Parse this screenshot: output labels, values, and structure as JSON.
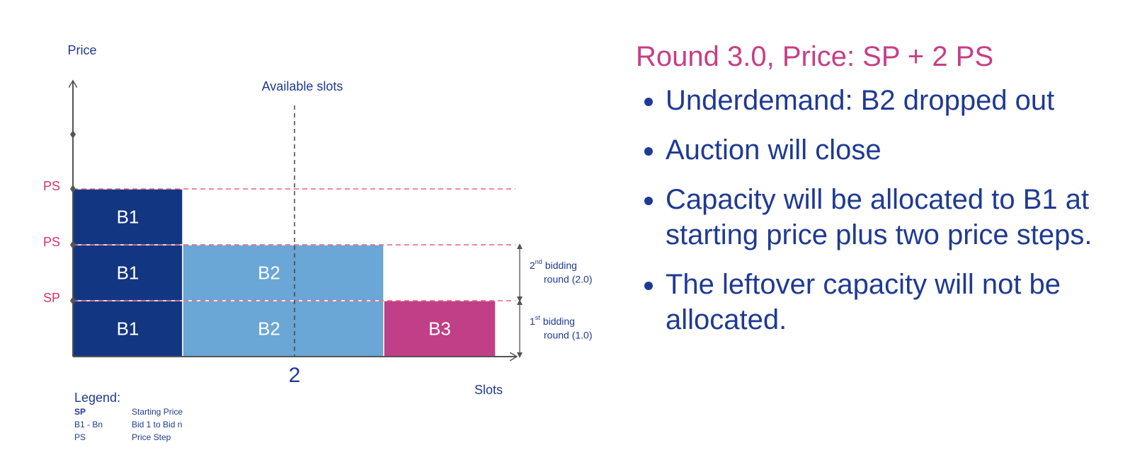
{
  "diagram": {
    "y_axis_label": "Price",
    "x_axis_label": "Slots",
    "available_slots_label": "Available slots",
    "available_slots_tick": "2",
    "price_levels": [
      "SP",
      "PS",
      "PS"
    ],
    "rows": [
      [
        "B1",
        "B2",
        "B3"
      ],
      [
        "B1",
        "B2"
      ],
      [
        "B1"
      ]
    ],
    "rounds": [
      {
        "ordinal": "1",
        "suffix": "st",
        "text": "bidding",
        "detail": "round (1.0)"
      },
      {
        "ordinal": "2",
        "suffix": "nd",
        "text": "bidding",
        "detail": "round (2.0)"
      }
    ]
  },
  "legend": {
    "title": "Legend:",
    "items": [
      {
        "abbr": "SP",
        "meaning": "Starting Price"
      },
      {
        "abbr": "B1 - Bn",
        "meaning": "Bid 1 to Bid n"
      },
      {
        "abbr": "PS",
        "meaning": "Price Step"
      }
    ]
  },
  "panel": {
    "title": "Round 3.0, Price: SP + 2 PS",
    "bullets": [
      "Underdemand: B2 dropped out",
      "Auction will close",
      "Capacity will be allocated to B1 at starting price plus two price steps.",
      "The leftover capacity will not be allocated."
    ]
  }
}
